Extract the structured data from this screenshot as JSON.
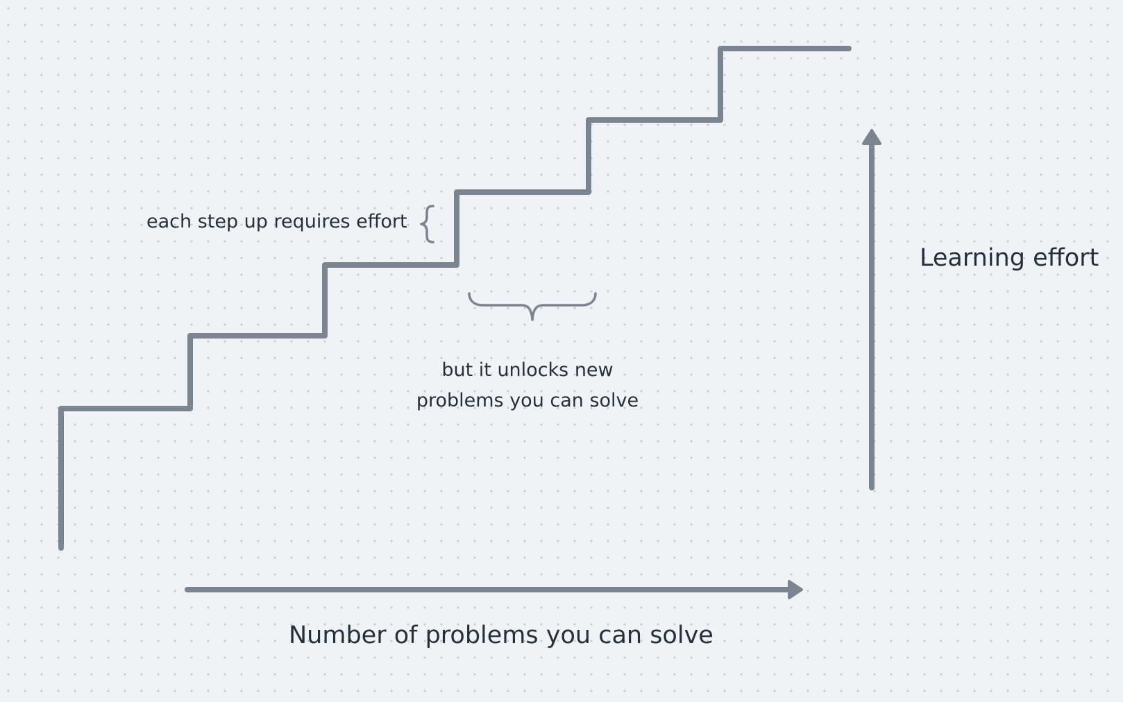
{
  "diagram": {
    "colors": {
      "background": "#f0f3f6",
      "dots": "#c3cad2",
      "stroke": "#7b8591",
      "text": "#26303b"
    },
    "annotations": {
      "step_effort": "each step up requires effort",
      "unlock_line1": "but it unlocks new",
      "unlock_line2": "problems you can solve"
    },
    "axes": {
      "x_label": "Number of problems you can solve",
      "y_label": "Learning effort"
    }
  }
}
